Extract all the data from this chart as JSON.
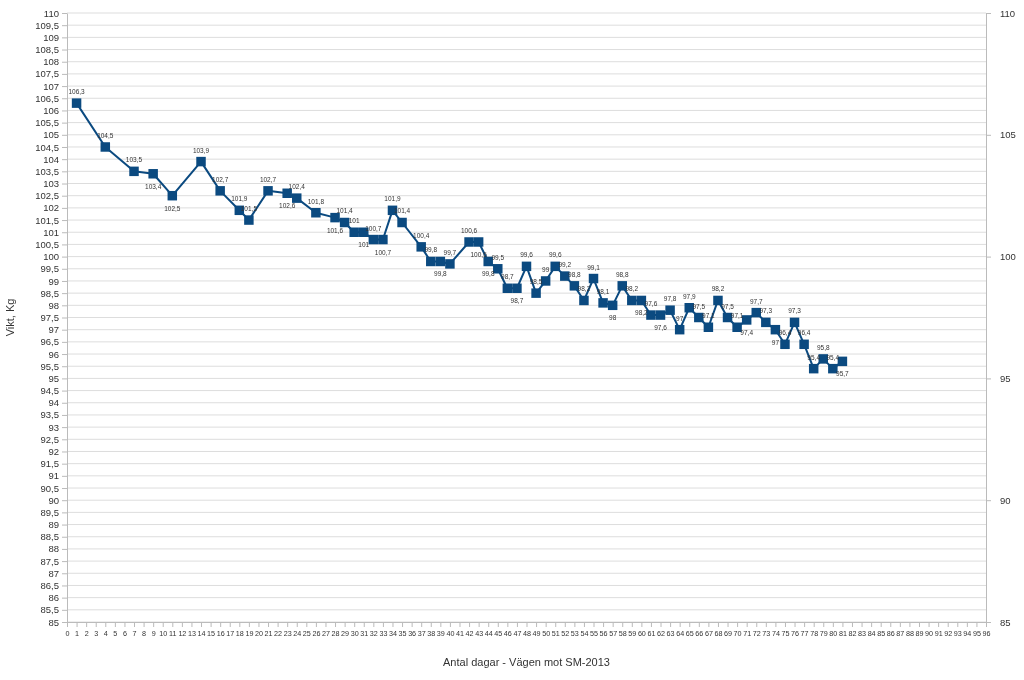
{
  "chart_data": {
    "type": "line",
    "xlabel": "Antal dagar - Vägen mot SM-2013",
    "ylabel": "Vikt, Kg",
    "x": [
      1,
      4,
      7,
      9,
      11,
      14,
      16,
      18,
      19,
      21,
      23,
      24,
      26,
      28,
      29,
      30,
      31,
      32,
      33,
      34,
      35,
      37,
      38,
      39,
      40,
      42,
      43,
      44,
      45,
      46,
      47,
      48,
      49,
      50,
      51,
      52,
      53,
      54,
      55,
      56,
      57,
      58,
      59,
      60,
      61,
      62,
      63,
      64,
      65,
      66,
      67,
      68,
      69,
      70,
      71,
      72,
      73,
      74,
      75,
      76,
      77,
      78,
      79,
      80,
      81
    ],
    "series": [
      {
        "color": "#0b4a80",
        "values": [
          106.3,
          104.5,
          103.5,
          103.4,
          102.5,
          103.9,
          102.7,
          101.9,
          101.5,
          102.7,
          102.6,
          102.4,
          101.8,
          101.6,
          101.4,
          101,
          101,
          100.7,
          100.7,
          101.9,
          101.4,
          100.4,
          99.8,
          99.8,
          99.7,
          100.6,
          100.6,
          99.8,
          99.5,
          98.7,
          98.7,
          99.6,
          98.5,
          99,
          99.6,
          99.2,
          98.8,
          98.2,
          99.1,
          98.1,
          98,
          98.8,
          98.2,
          98.2,
          97.6,
          97.6,
          97.8,
          97,
          97.9,
          97.5,
          97.1,
          98.2,
          97.5,
          97.1,
          97.4,
          97.7,
          97.3,
          97,
          96.4,
          97.3,
          96.4,
          95.4,
          95.8,
          95.4,
          95.7
        ],
        "value_labels": [
          "106,3",
          "104,5",
          "103,5",
          "103,4",
          "102,5",
          "103,9",
          "102,7",
          "101,9",
          "101,5",
          "102,7",
          "102,6",
          "102,4",
          "101,8",
          "101,6",
          "101,4",
          "101",
          "101",
          "100,7",
          "100,7",
          "101,9",
          "101,4",
          "100,4",
          "99,8",
          "99,8",
          "99,7",
          "100,6",
          "100,6",
          "99,8",
          "99,5",
          "98,7",
          "98,7",
          "99,6",
          "98,5",
          "99",
          "99,6",
          "99,2",
          "98,8",
          "98,2",
          "99,1",
          "98,1",
          "98",
          "98,8",
          "98,2",
          "98,2",
          "97,6",
          "97,6",
          "97,8",
          "97",
          "97,9",
          "97,5",
          "97,1",
          "98,2",
          "97,5",
          "97,1",
          "97,4",
          "97,7",
          "97,3",
          "97",
          "96,4",
          "97,3",
          "96,4",
          "95,4",
          "95,8",
          "95,4",
          "95,7"
        ]
      }
    ],
    "xlim": [
      0,
      96
    ],
    "xticks": [
      0,
      1,
      2,
      3,
      4,
      5,
      6,
      7,
      8,
      9,
      10,
      11,
      12,
      13,
      14,
      15,
      16,
      17,
      18,
      19,
      20,
      21,
      22,
      23,
      24,
      25,
      26,
      27,
      28,
      29,
      30,
      31,
      32,
      33,
      34,
      35,
      36,
      37,
      38,
      39,
      40,
      41,
      42,
      43,
      44,
      45,
      46,
      47,
      48,
      49,
      50,
      51,
      52,
      53,
      54,
      55,
      56,
      57,
      58,
      59,
      60,
      61,
      62,
      63,
      64,
      65,
      66,
      67,
      68,
      69,
      70,
      71,
      72,
      73,
      74,
      75,
      76,
      77,
      78,
      79,
      80,
      81,
      82,
      83,
      84,
      85,
      86,
      87,
      88,
      89,
      90,
      91,
      92,
      93,
      94,
      95,
      96
    ],
    "ylim": [
      85,
      110
    ],
    "yticks": [
      85,
      {
        "value": 85.5,
        "label": "85,5"
      },
      86,
      {
        "value": 86.5,
        "label": "86,5"
      },
      87,
      {
        "value": 87.5,
        "label": "87,5"
      },
      88,
      {
        "value": 88.5,
        "label": "88,5"
      },
      89,
      {
        "value": 89.5,
        "label": "89,5"
      },
      90,
      {
        "value": 90.5,
        "label": "90,5"
      },
      91,
      {
        "value": 91.5,
        "label": "91,5"
      },
      92,
      {
        "value": 92.5,
        "label": "92,5"
      },
      93,
      {
        "value": 93.5,
        "label": "93,5"
      },
      94,
      {
        "value": 94.5,
        "label": "94,5"
      },
      95,
      {
        "value": 95.5,
        "label": "95,5"
      },
      96,
      {
        "value": 96.5,
        "label": "96,5"
      },
      97,
      {
        "value": 97.5,
        "label": "97,5"
      },
      98,
      {
        "value": 98.5,
        "label": "98,5"
      },
      99,
      {
        "value": 99.5,
        "label": "99,5"
      },
      100,
      {
        "value": 100.5,
        "label": "100,5"
      },
      101,
      {
        "value": 101.5,
        "label": "101,5"
      },
      102,
      {
        "value": 102.5,
        "label": "102,5"
      },
      103,
      {
        "value": 103.5,
        "label": "103,5"
      },
      104,
      {
        "value": 104.5,
        "label": "104,5"
      },
      105,
      {
        "value": 105.5,
        "label": "105,5"
      },
      106,
      {
        "value": 106.5,
        "label": "106,5"
      },
      107,
      {
        "value": 107.5,
        "label": "107,5"
      },
      108,
      {
        "value": 108.5,
        "label": "108,5"
      },
      109,
      {
        "value": 109.5,
        "label": "109,5"
      },
      110
    ],
    "y2lim": [
      85,
      110
    ],
    "y2ticks": [
      85,
      90,
      95,
      100,
      105,
      110
    ],
    "grid": "y",
    "marker": "square",
    "line_style": "solid"
  }
}
